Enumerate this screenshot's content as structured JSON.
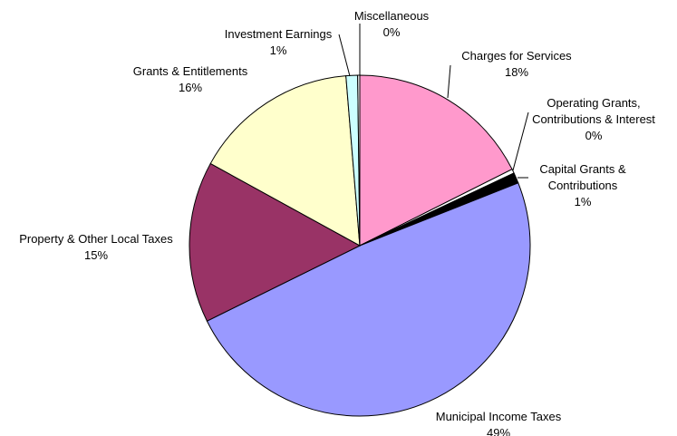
{
  "chart_data": {
    "type": "pie",
    "categories": [
      "Charges for Services",
      "Operating Grants, Contributions & Interest",
      "Capital Grants & Contributions",
      "Municipal Income Taxes",
      "Property & Other Local Taxes",
      "Grants & Entitlements",
      "Investment Earnings",
      "Miscellaneous"
    ],
    "values": [
      17.6,
      0.4,
      1.0,
      48.7,
      15.3,
      15.7,
      1.1,
      0.2
    ],
    "value_labels": [
      "18%",
      "0%",
      "1%",
      "49%",
      "15%",
      "16%",
      "1%",
      "0%"
    ],
    "colors": [
      "#ff99cc",
      "#ffffff",
      "#000000",
      "#9999ff",
      "#993366",
      "#ffffcc",
      "#ccffff",
      "#ffffff"
    ]
  }
}
